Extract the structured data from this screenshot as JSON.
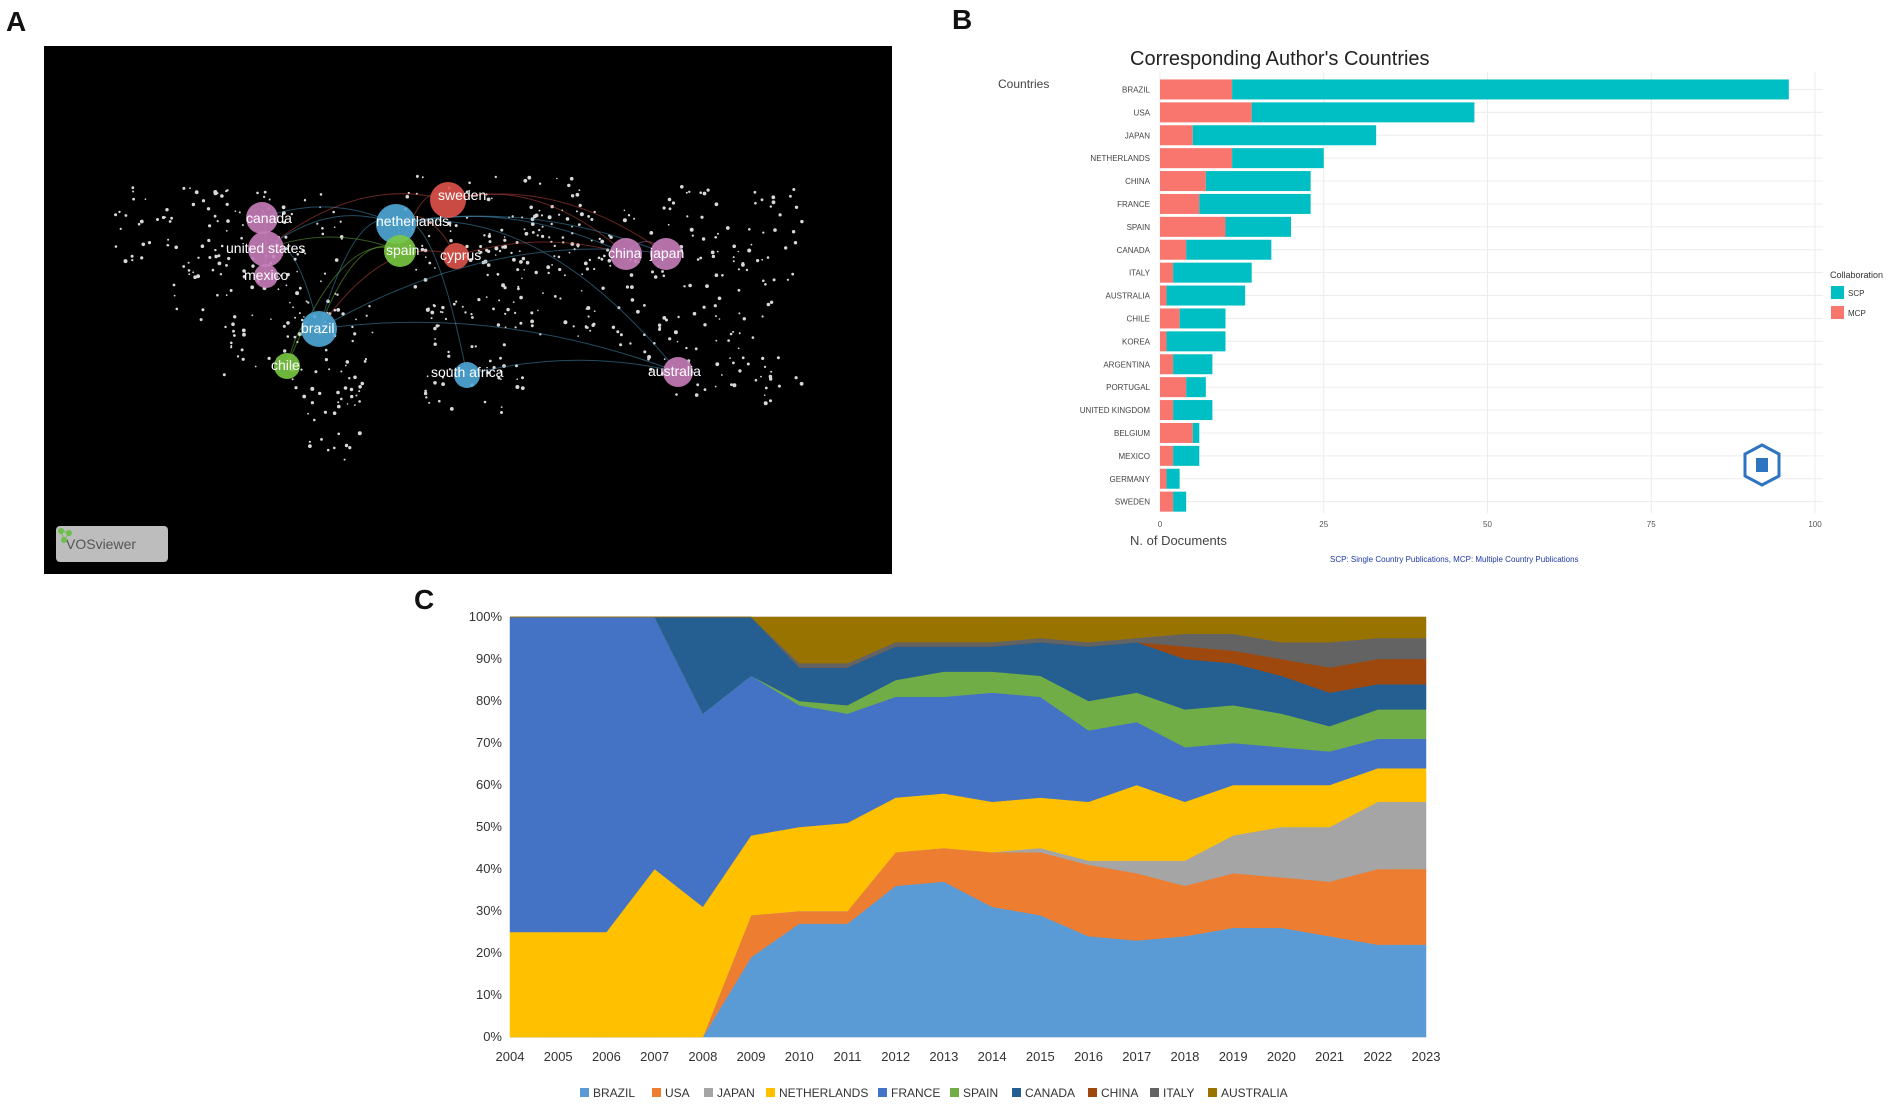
{
  "panel_labels": {
    "a": "A",
    "b": "B",
    "c": "C"
  },
  "network_map": {
    "badge_label": "VOSviewer",
    "nodes": [
      {
        "label": "canada",
        "color": "#c77dba"
      },
      {
        "label": "united states",
        "color": "#c77dba"
      },
      {
        "label": "mexico",
        "color": "#c77dba"
      },
      {
        "label": "netherlands",
        "color": "#4fa8d8"
      },
      {
        "label": "sweden",
        "color": "#e0534a"
      },
      {
        "label": "spain",
        "color": "#7ac943"
      },
      {
        "label": "cyprus",
        "color": "#e0534a"
      },
      {
        "label": "china",
        "color": "#c77dba"
      },
      {
        "label": "japan",
        "color": "#c77dba"
      },
      {
        "label": "brazil",
        "color": "#4fa8d8"
      },
      {
        "label": "chile",
        "color": "#7ac943"
      },
      {
        "label": "south africa",
        "color": "#4fa8d8"
      },
      {
        "label": "australia",
        "color": "#c77dba"
      }
    ]
  },
  "chart_data": [
    {
      "type": "bar",
      "orientation": "horizontal",
      "stacked": true,
      "title": "Corresponding Author's Countries",
      "ylabel": "Countries",
      "xlabel": "N. of Documents",
      "caption": "SCP: Single Country Publications, MCP: Multiple Country Publications",
      "categories": [
        "BRAZIL",
        "USA",
        "JAPAN",
        "NETHERLANDS",
        "CHINA",
        "FRANCE",
        "SPAIN",
        "CANADA",
        "ITALY",
        "AUSTRALIA",
        "CHILE",
        "KOREA",
        "ARGENTINA",
        "PORTUGAL",
        "UNITED KINGDOM",
        "BELGIUM",
        "MEXICO",
        "GERMANY",
        "SWEDEN"
      ],
      "series": [
        {
          "name": "MCP",
          "color": "#f8766d",
          "values": [
            11,
            14,
            5,
            11,
            7,
            6,
            10,
            4,
            2,
            1,
            3,
            1,
            2,
            4,
            2,
            5,
            2,
            1,
            2
          ]
        },
        {
          "name": "SCP",
          "color": "#00bfc4",
          "values": [
            85,
            34,
            28,
            14,
            16,
            17,
            10,
            13,
            12,
            12,
            7,
            9,
            6,
            3,
            6,
            1,
            4,
            2,
            2
          ]
        }
      ],
      "xlim": [
        0,
        100
      ],
      "xticks": [
        0,
        25,
        50,
        75,
        100
      ],
      "legend_title": "Collaboration",
      "legend_position": "right"
    },
    {
      "type": "area",
      "stacked": true,
      "percent": true,
      "x": [
        "2004",
        "2005",
        "2006",
        "2007",
        "2008",
        "2009",
        "2010",
        "2011",
        "2012",
        "2013",
        "2014",
        "2015",
        "2016",
        "2017",
        "2018",
        "2019",
        "2020",
        "2021",
        "2022",
        "2023"
      ],
      "yticks": [
        "0%",
        "10%",
        "20%",
        "30%",
        "40%",
        "50%",
        "60%",
        "70%",
        "80%",
        "90%",
        "100%"
      ],
      "ylim": [
        0,
        100
      ],
      "series": [
        {
          "name": "BRAZIL",
          "color": "#5b9bd5",
          "values": [
            0,
            0,
            0,
            0,
            0,
            19,
            27,
            27,
            36,
            37,
            31,
            29,
            24,
            23,
            24,
            26,
            26,
            24,
            22,
            22
          ]
        },
        {
          "name": "USA",
          "color": "#ed7d31",
          "values": [
            0,
            0,
            0,
            0,
            0,
            10,
            3,
            3,
            8,
            8,
            13,
            15,
            17,
            16,
            12,
            13,
            12,
            13,
            18,
            18
          ]
        },
        {
          "name": "JAPAN",
          "color": "#a5a5a5",
          "values": [
            0,
            0,
            0,
            0,
            0,
            0,
            0,
            0,
            0,
            0,
            0,
            1,
            1,
            3,
            6,
            9,
            12,
            13,
            16,
            16
          ]
        },
        {
          "name": "NETHERLANDS",
          "color": "#ffc000",
          "values": [
            25,
            25,
            25,
            40,
            31,
            19,
            20,
            21,
            13,
            13,
            12,
            12,
            14,
            18,
            14,
            12,
            10,
            10,
            8,
            8
          ]
        },
        {
          "name": "FRANCE",
          "color": "#4472c4",
          "values": [
            75,
            75,
            75,
            60,
            46,
            38,
            29,
            26,
            24,
            23,
            26,
            24,
            17,
            15,
            13,
            10,
            9,
            8,
            7,
            7
          ]
        },
        {
          "name": "SPAIN",
          "color": "#70ad47",
          "values": [
            0,
            0,
            0,
            0,
            0,
            0,
            1,
            2,
            4,
            6,
            5,
            5,
            7,
            7,
            9,
            9,
            8,
            6,
            7,
            7
          ]
        },
        {
          "name": "CANADA",
          "color": "#255e91",
          "values": [
            0,
            0,
            0,
            0,
            23,
            14,
            8,
            9,
            8,
            6,
            6,
            8,
            13,
            12,
            12,
            10,
            9,
            8,
            6,
            6
          ]
        },
        {
          "name": "CHINA",
          "color": "#9e480e",
          "values": [
            0,
            0,
            0,
            0,
            0,
            0,
            0,
            0,
            0,
            0,
            0,
            0,
            0,
            0,
            3,
            3,
            4,
            6,
            6,
            6
          ]
        },
        {
          "name": "ITALY",
          "color": "#636363",
          "values": [
            0,
            0,
            0,
            0,
            0,
            0,
            1,
            1,
            1,
            1,
            1,
            1,
            1,
            1,
            3,
            4,
            4,
            6,
            5,
            5
          ]
        },
        {
          "name": "AUSTRALIA",
          "color": "#997300",
          "values": [
            0,
            0,
            0,
            0,
            0,
            0,
            11,
            11,
            6,
            6,
            6,
            5,
            6,
            5,
            4,
            4,
            6,
            6,
            5,
            5
          ]
        }
      ]
    }
  ]
}
